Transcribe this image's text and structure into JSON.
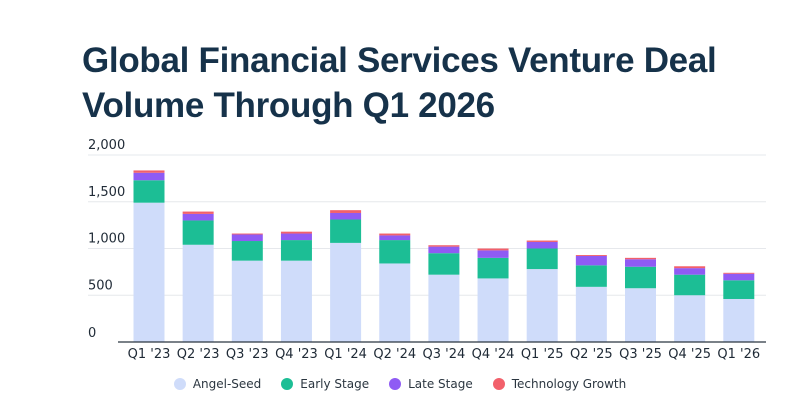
{
  "title_lines": [
    "Global Financial Services Venture Deal",
    "Volume Through Q1 2026"
  ],
  "chart_data": {
    "type": "bar",
    "stacked": true,
    "title": "Global Financial Services Venture Deal Volume Through Q1 2026",
    "xlabel": "",
    "ylabel": "",
    "ylim": [
      0,
      2000
    ],
    "yticks": [
      0,
      500,
      1000,
      1500,
      2000
    ],
    "ytick_labels": [
      "0",
      "500",
      "1,000",
      "1,500",
      "2,000"
    ],
    "grid": true,
    "legend_position": "bottom-center",
    "categories": [
      "Q1 '23",
      "Q2 '23",
      "Q3 '23",
      "Q4 '23",
      "Q1 '24",
      "Q2 '24",
      "Q3 '24",
      "Q4 '24",
      "Q1 '25",
      "Q2 '25",
      "Q3 '25",
      "Q4 '25",
      "Q1 '26"
    ],
    "series": [
      {
        "name": "Angel-Seed",
        "color": "#cfdcfa",
        "values": [
          1490,
          1040,
          870,
          870,
          1060,
          840,
          720,
          680,
          780,
          590,
          575,
          500,
          460
        ]
      },
      {
        "name": "Early Stage",
        "color": "#1cbe95",
        "values": [
          240,
          260,
          210,
          220,
          250,
          250,
          230,
          220,
          220,
          230,
          230,
          220,
          200
        ]
      },
      {
        "name": "Late Stage",
        "color": "#8f5bf4",
        "values": [
          80,
          70,
          70,
          70,
          70,
          50,
          70,
          80,
          70,
          100,
          80,
          70,
          70
        ]
      },
      {
        "name": "Technology Growth",
        "color": "#f2606b",
        "values": [
          25,
          25,
          10,
          20,
          30,
          20,
          15,
          20,
          15,
          10,
          15,
          20,
          10
        ]
      }
    ]
  }
}
